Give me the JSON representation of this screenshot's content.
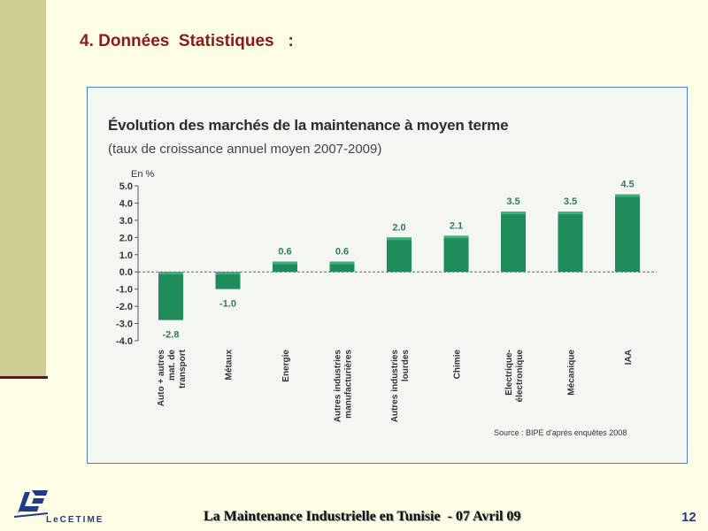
{
  "slide": {
    "heading": "4. Données  Statistiques   :",
    "footer": "La Maintenance Industrielle en Tunisie  - 07 Avril 09",
    "page_number": "12",
    "logo_text": "LeCETIME"
  },
  "chart_data": {
    "type": "bar",
    "title": "Évolution des marchés de la maintenance à moyen terme",
    "subtitle": "(taux de croissance annuel moyen 2007-2009)",
    "ylabel": "En %",
    "ylim": [
      -4.0,
      5.0
    ],
    "yticks": [
      "5.0",
      "4.0",
      "3.0",
      "2.0",
      "1.0",
      "0.0",
      "-1.0",
      "-2.0",
      "-3.0",
      "-4.0"
    ],
    "categories": [
      "Auto + autres mat. de transport",
      "Métaux",
      "Energie",
      "Autres industries manufacturières",
      "Autres industries lourdes",
      "Chimie",
      "Electrique-électronique",
      "Mécanique",
      "IAA"
    ],
    "value_labels": [
      "-2.8",
      "-1.0",
      "0.6",
      "0.6",
      "2.0",
      "2.1",
      "3.5",
      "3.5",
      "4.5"
    ],
    "values": [
      -2.8,
      -1.0,
      0.6,
      0.6,
      2.0,
      2.1,
      3.5,
      3.5,
      4.5
    ],
    "source": "Source : BIPE d'après enquêtes 2008",
    "colors": {
      "bar": "#1f8a5a",
      "bar_light": "#3fae7c"
    }
  }
}
